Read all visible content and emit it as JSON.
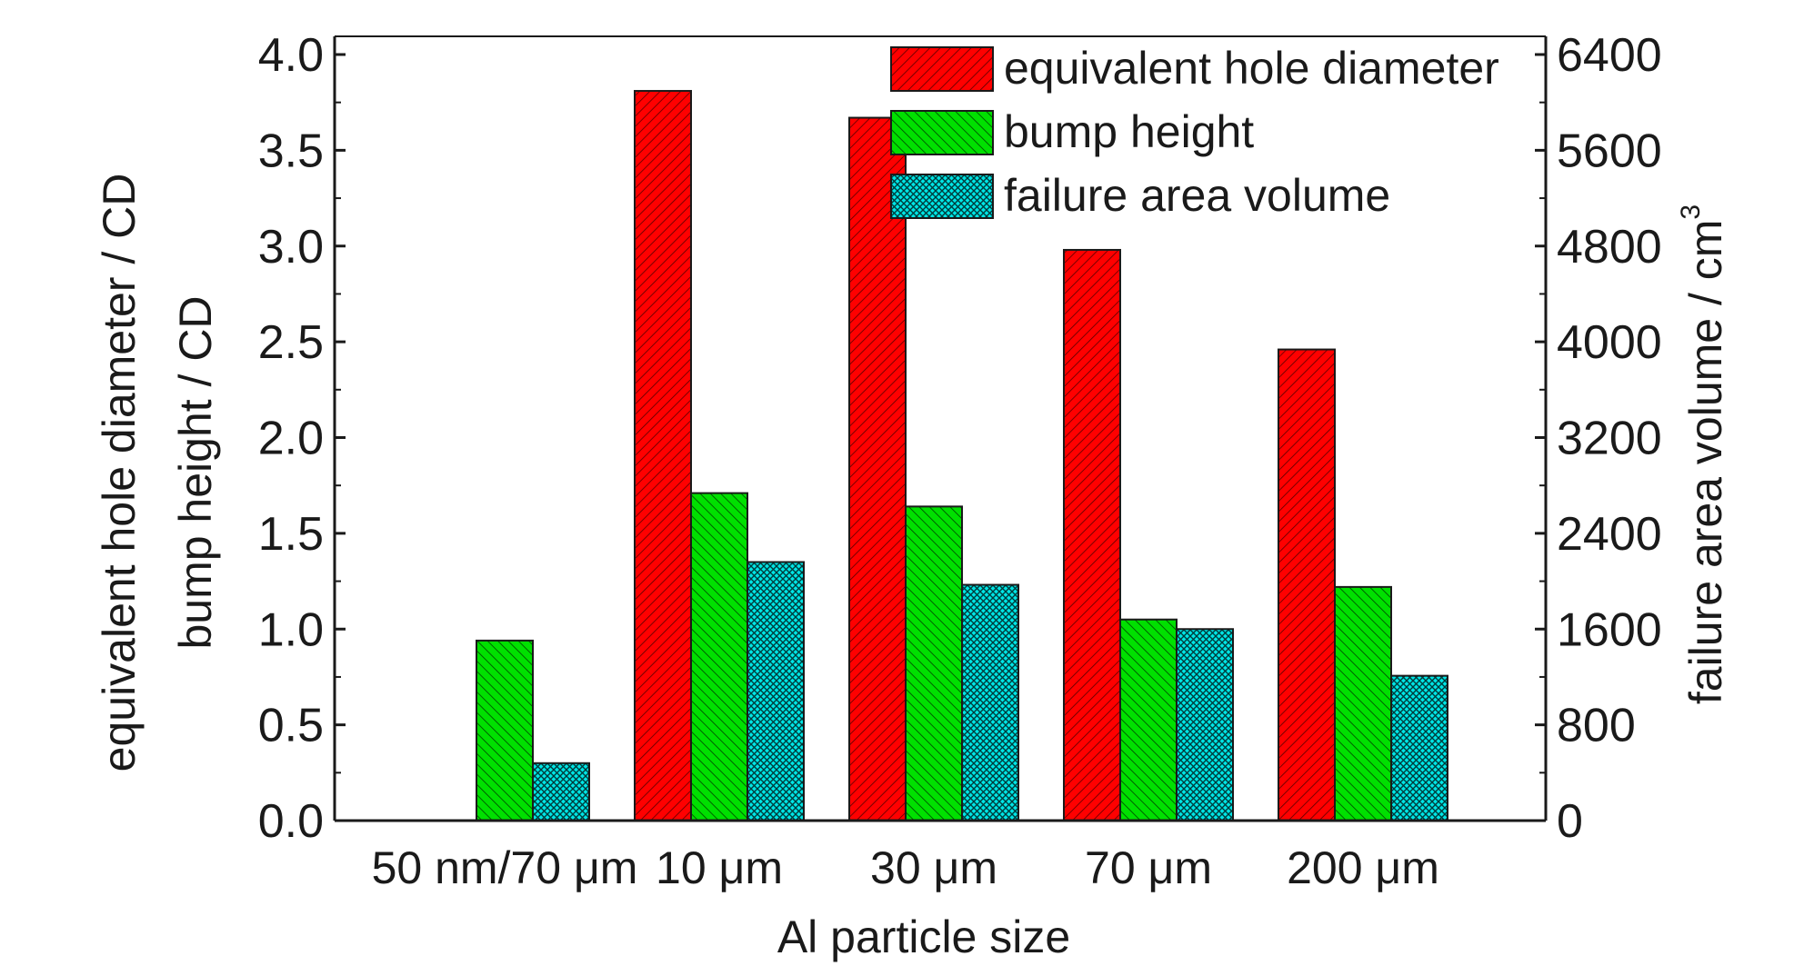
{
  "chart_data": {
    "type": "bar",
    "categories": [
      "50 nm/70 μm",
      "10 μm",
      "30 μm",
      "70 μm",
      "200 μm"
    ],
    "xlabel": "Al particle size",
    "ylabel_left_line1": "equivalent hole diameter / CD",
    "ylabel_left_line2": "bump height / CD",
    "ylabel_right": "failure area volume / cm",
    "ylabel_right_superscript": "3",
    "ylim_left": [
      0,
      4.0
    ],
    "ylim_right": [
      0,
      6400
    ],
    "yticks_left": [
      "0.0",
      "0.5",
      "1.0",
      "1.5",
      "2.0",
      "2.5",
      "3.0",
      "3.5",
      "4.0"
    ],
    "yticks_right": [
      "0",
      "800",
      "1600",
      "2400",
      "3200",
      "4000",
      "4800",
      "5600",
      "6400"
    ],
    "series": [
      {
        "name": "equivalent hole diameter",
        "axis": "left",
        "color": "#ff0000",
        "values": [
          null,
          3.81,
          3.67,
          2.98,
          2.46
        ]
      },
      {
        "name": "bump height",
        "axis": "left",
        "color": "#00e000",
        "values": [
          0.94,
          1.71,
          1.64,
          1.05,
          1.22
        ]
      },
      {
        "name": "failure area volume",
        "axis": "right",
        "color": "#00e5e5",
        "values": [
          480,
          2160,
          1970,
          1600,
          1210
        ]
      }
    ],
    "legend_position": "top-right",
    "grid": false
  }
}
